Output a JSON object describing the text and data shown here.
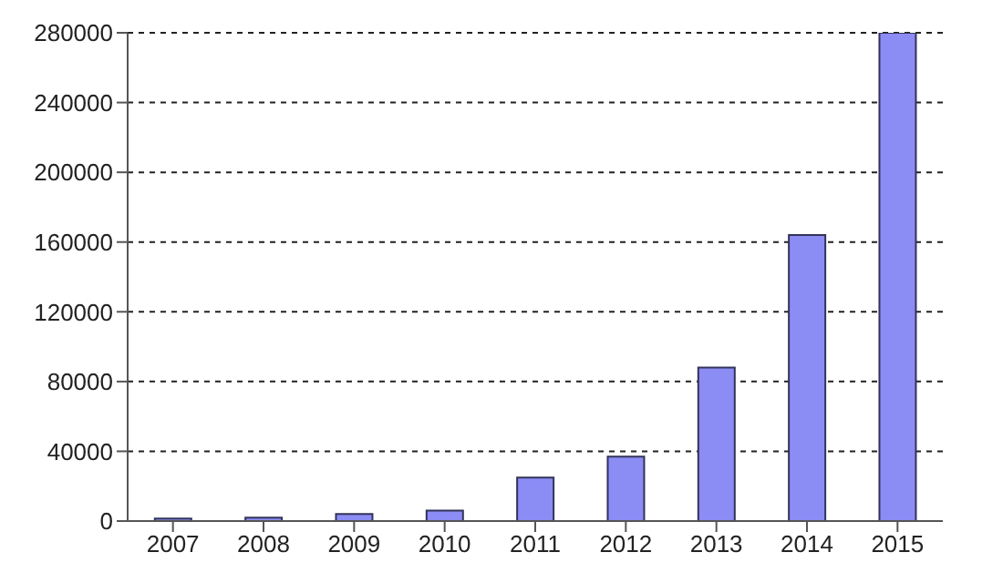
{
  "chart_data": {
    "type": "bar",
    "categories": [
      "2007",
      "2008",
      "2009",
      "2010",
      "2011",
      "2012",
      "2013",
      "2014",
      "2015"
    ],
    "values": [
      1500,
      2000,
      4000,
      6000,
      25000,
      37000,
      88000,
      164000,
      280000
    ],
    "color": "#8c8cf5",
    "ylim": [
      0,
      280000
    ],
    "yticks": [
      0,
      40000,
      80000,
      120000,
      160000,
      200000,
      240000,
      280000
    ],
    "grid": "y"
  }
}
